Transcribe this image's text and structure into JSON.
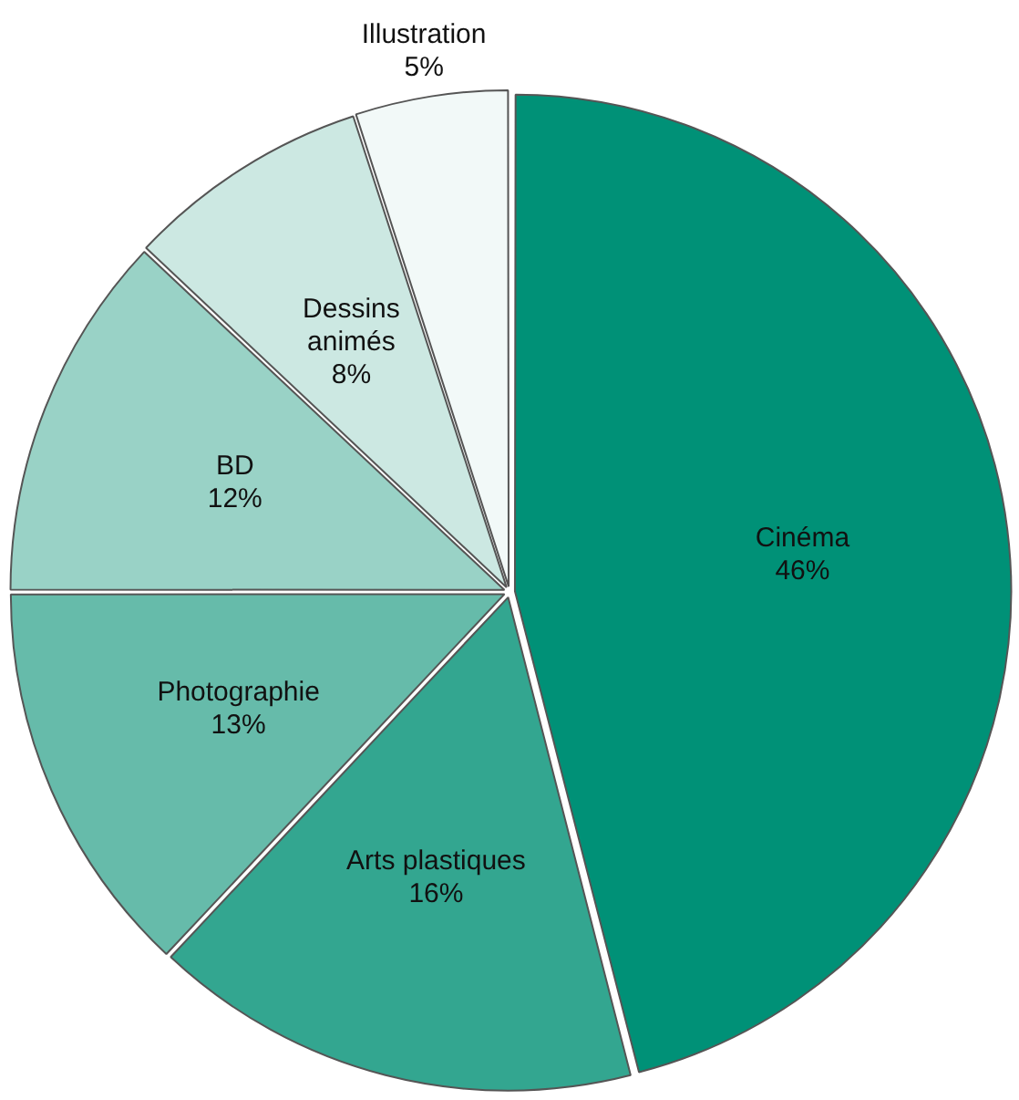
{
  "chart_data": {
    "type": "pie",
    "categories": [
      "Cinéma",
      "Arts plastiques",
      "Photographie",
      "BD",
      "Dessins animés",
      "Illustration"
    ],
    "values": [
      46,
      16,
      13,
      12,
      8,
      5
    ],
    "colors": [
      "#009177",
      "#33a690",
      "#66bbaa",
      "#99d2c6",
      "#cce8e2",
      "#f2f9f8"
    ],
    "value_labels": [
      "46%",
      "16%",
      "13%",
      "12%",
      "8%",
      "5%"
    ],
    "legend": false
  }
}
